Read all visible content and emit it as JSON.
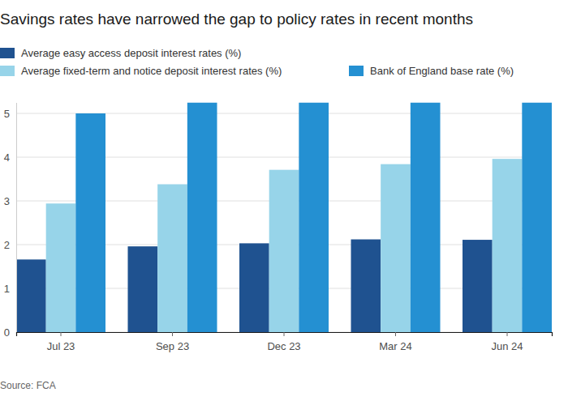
{
  "chart_data": {
    "type": "bar",
    "title": "Savings rates have narrowed the gap to policy rates in recent months",
    "source": "Source: FCA",
    "categories": [
      "Jul 23",
      "Sep 23",
      "Dec 23",
      "Mar 24",
      "Jun 24"
    ],
    "series": [
      {
        "name": "Average easy access deposit interest rates (%)",
        "color": "#1f5290",
        "values": [
          1.66,
          1.96,
          2.03,
          2.12,
          2.11
        ]
      },
      {
        "name": "Average fixed-term and notice deposit interest rates (%)",
        "color": "#97d4e9",
        "values": [
          2.94,
          3.38,
          3.71,
          3.84,
          3.96
        ]
      },
      {
        "name": "Bank of England base rate (%)",
        "color": "#2490d2",
        "values": [
          5.0,
          5.25,
          5.25,
          5.25,
          5.25
        ]
      }
    ],
    "ylim": [
      0,
      5.25
    ],
    "yticks": [
      0,
      1,
      2,
      3,
      4,
      5
    ],
    "grid": true,
    "legend": "top"
  }
}
